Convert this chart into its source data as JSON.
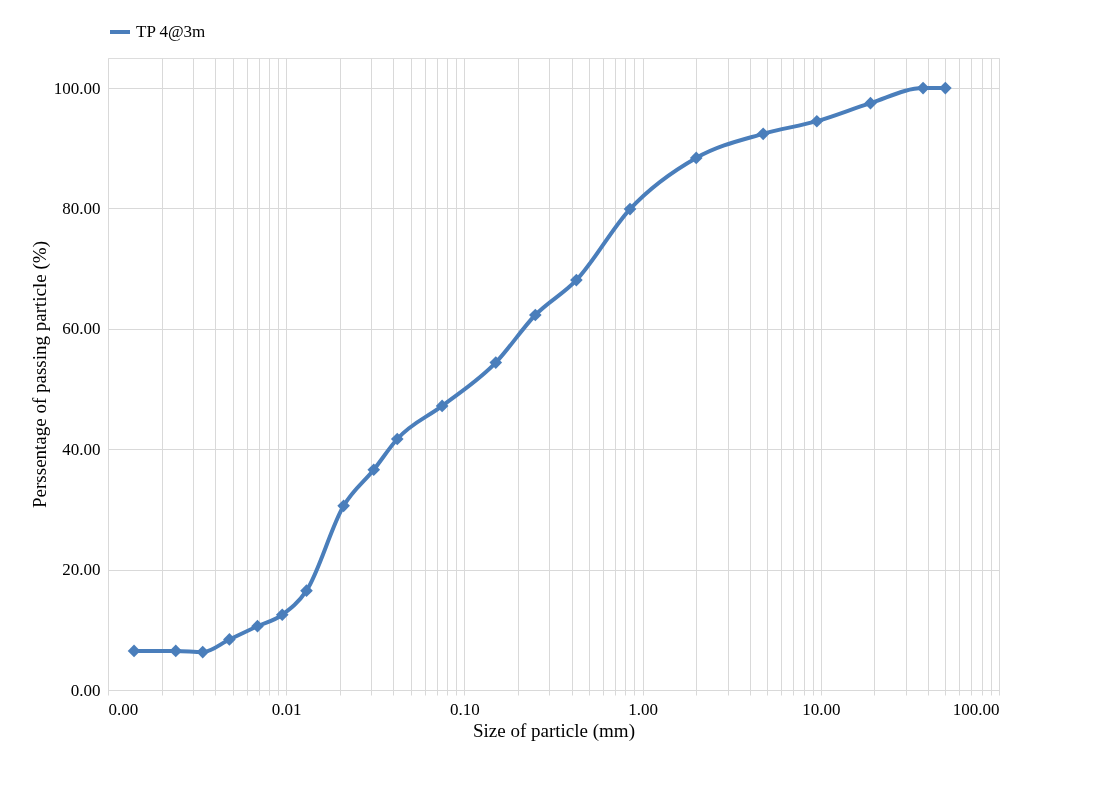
{
  "chart_data": {
    "type": "line",
    "xlabel": "Size of particle (mm)",
    "ylabel": "Perssentage of passing particle (%)",
    "log": "x",
    "grid": true,
    "legend": "top",
    "marker": "diamond",
    "line_style": "solid",
    "xlim": [
      0.001,
      100
    ],
    "ylim": [
      0,
      105
    ],
    "xticks": [
      {
        "value": 0.001,
        "label": "0.00"
      },
      {
        "value": 0.002,
        "label": null
      },
      {
        "value": 0.003,
        "label": null
      },
      {
        "value": 0.004,
        "label": null
      },
      {
        "value": 0.005,
        "label": null
      },
      {
        "value": 0.006,
        "label": null
      },
      {
        "value": 0.007,
        "label": null
      },
      {
        "value": 0.008,
        "label": null
      },
      {
        "value": 0.009,
        "label": null
      },
      {
        "value": 0.01,
        "label": "0.01"
      },
      {
        "value": 0.02,
        "label": null
      },
      {
        "value": 0.03,
        "label": null
      },
      {
        "value": 0.04,
        "label": null
      },
      {
        "value": 0.05,
        "label": null
      },
      {
        "value": 0.06,
        "label": null
      },
      {
        "value": 0.07,
        "label": null
      },
      {
        "value": 0.08,
        "label": null
      },
      {
        "value": 0.09,
        "label": null
      },
      {
        "value": 0.1,
        "label": "0.10"
      },
      {
        "value": 0.2,
        "label": null
      },
      {
        "value": 0.3,
        "label": null
      },
      {
        "value": 0.4,
        "label": null
      },
      {
        "value": 0.5,
        "label": null
      },
      {
        "value": 0.6,
        "label": null
      },
      {
        "value": 0.7,
        "label": null
      },
      {
        "value": 0.8,
        "label": null
      },
      {
        "value": 0.9,
        "label": null
      },
      {
        "value": 1,
        "label": "1.00"
      },
      {
        "value": 2,
        "label": null
      },
      {
        "value": 3,
        "label": null
      },
      {
        "value": 4,
        "label": null
      },
      {
        "value": 5,
        "label": null
      },
      {
        "value": 6,
        "label": null
      },
      {
        "value": 7,
        "label": null
      },
      {
        "value": 8,
        "label": null
      },
      {
        "value": 9,
        "label": null
      },
      {
        "value": 10,
        "label": "10.00"
      },
      {
        "value": 20,
        "label": null
      },
      {
        "value": 30,
        "label": null
      },
      {
        "value": 40,
        "label": null
      },
      {
        "value": 50,
        "label": null
      },
      {
        "value": 60,
        "label": null
      },
      {
        "value": 70,
        "label": null
      },
      {
        "value": 80,
        "label": null
      },
      {
        "value": 90,
        "label": null
      },
      {
        "value": 100,
        "label": "100.00"
      }
    ],
    "yticks": [
      {
        "value": 0,
        "label": "0.00"
      },
      {
        "value": 20,
        "label": "20.00"
      },
      {
        "value": 40,
        "label": "40.00"
      },
      {
        "value": 60,
        "label": "60.00"
      },
      {
        "value": 80,
        "label": "80.00"
      },
      {
        "value": 100,
        "label": "100.00"
      }
    ],
    "x": [
      0.0014,
      0.0024,
      0.0034,
      0.0048,
      0.0069,
      0.0095,
      0.013,
      0.021,
      0.031,
      0.042,
      0.075,
      0.15,
      0.25,
      0.425,
      0.85,
      2,
      4.75,
      9.5,
      19,
      37.5,
      50
    ],
    "series": [
      {
        "name": "TP 4@3m",
        "color": "#4a7ebb",
        "values": [
          6.5,
          6.5,
          6.3,
          8.4,
          10.6,
          12.5,
          16.5,
          30.6,
          36.6,
          41.7,
          47.2,
          54.4,
          62.3,
          68.1,
          79.9,
          88.4,
          92.4,
          94.5,
          97.5,
          100,
          100
        ]
      }
    ]
  }
}
